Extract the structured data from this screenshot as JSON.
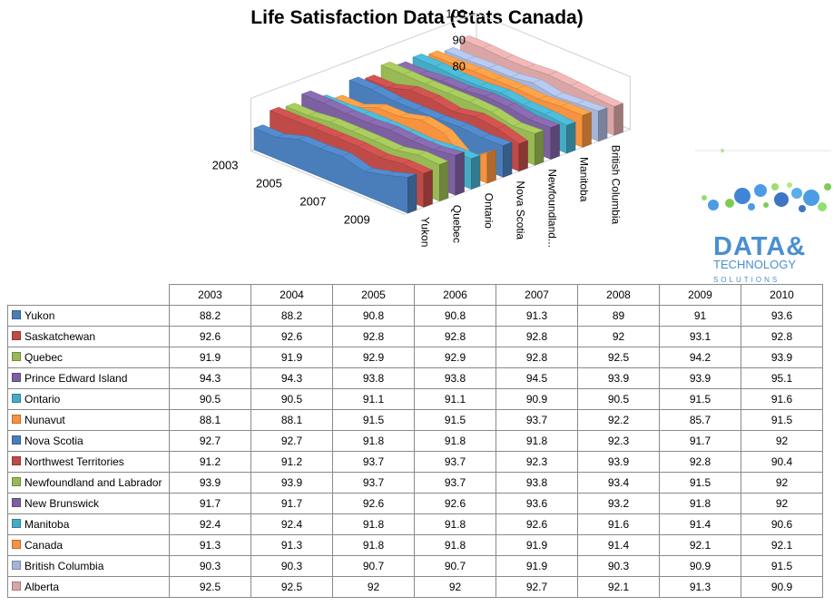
{
  "chart_data": {
    "type": "area",
    "title": "Life Satisfaction Data (Stats Canada)",
    "categories": [
      "2003",
      "2004",
      "2005",
      "2006",
      "2007",
      "2008",
      "2009",
      "2010"
    ],
    "x_axis_labels": [
      "2003",
      "2005",
      "2007",
      "2009"
    ],
    "depth_axis_labels": [
      "Yukon",
      "Quebec",
      "Ontario",
      "Nova Scotia",
      "Newfoundland...",
      "Manitoba",
      "British Columbia"
    ],
    "ylim": [
      80,
      100
    ],
    "yticks": [
      80,
      90,
      100
    ],
    "series": [
      {
        "name": "Yukon",
        "color": "#4a7ebb",
        "values": [
          88.2,
          88.2,
          90.8,
          90.8,
          91.3,
          89,
          91,
          93.6
        ]
      },
      {
        "name": "Saskatchewan",
        "color": "#be4b48",
        "values": [
          92.6,
          92.6,
          92.8,
          92.8,
          92.8,
          92,
          93.1,
          92.8
        ]
      },
      {
        "name": "Quebec",
        "color": "#98b954",
        "values": [
          91.9,
          91.9,
          92.9,
          92.9,
          92.8,
          92.5,
          94.2,
          93.9
        ]
      },
      {
        "name": "Prince Edward Island",
        "color": "#7d60a0",
        "values": [
          94.3,
          94.3,
          93.8,
          93.8,
          94.5,
          93.9,
          93.9,
          95.1
        ]
      },
      {
        "name": "Ontario",
        "color": "#46aac5",
        "values": [
          90.5,
          90.5,
          91.1,
          91.1,
          90.9,
          90.5,
          91.5,
          91.6
        ]
      },
      {
        "name": "Nunavut",
        "color": "#f69240",
        "values": [
          88.1,
          88.1,
          91.5,
          91.5,
          93.7,
          92.2,
          85.7,
          91.5
        ]
      },
      {
        "name": "Nova Scotia",
        "color": "#4a7ebb",
        "values": [
          92.7,
          92.7,
          91.8,
          91.8,
          91.8,
          92.3,
          91.7,
          92
        ]
      },
      {
        "name": "Northwest Territories",
        "color": "#be4b48",
        "values": [
          91.2,
          91.2,
          93.7,
          93.7,
          92.3,
          93.9,
          92.8,
          90.4
        ]
      },
      {
        "name": "Newfoundland and Labrador",
        "color": "#98b954",
        "values": [
          93.9,
          93.9,
          93.7,
          93.7,
          93.8,
          93.4,
          91.5,
          92
        ]
      },
      {
        "name": "New Brunswick",
        "color": "#7d60a0",
        "values": [
          91.7,
          91.7,
          92.6,
          92.6,
          93.6,
          93.2,
          91.8,
          92
        ]
      },
      {
        "name": "Manitoba",
        "color": "#46aac5",
        "values": [
          92.4,
          92.4,
          91.8,
          91.8,
          92.6,
          91.6,
          91.4,
          90.6
        ]
      },
      {
        "name": "Canada",
        "color": "#f69240",
        "values": [
          91.3,
          91.3,
          91.8,
          91.8,
          91.9,
          91.4,
          92.1,
          92.1
        ]
      },
      {
        "name": "British Columbia",
        "color": "#a5b5d8",
        "values": [
          90.3,
          90.3,
          90.7,
          90.7,
          91.9,
          90.3,
          90.9,
          91.5
        ]
      },
      {
        "name": "Alberta",
        "color": "#d9a5a5",
        "values": [
          92.5,
          92.5,
          92,
          92,
          92.7,
          92.1,
          91.3,
          90.9
        ]
      }
    ],
    "grid": false,
    "legend": "data table below chart"
  },
  "logo": {
    "line1": "DATA&",
    "line2": "TECHNOLOGY",
    "line3": "SOLUTIONS"
  }
}
